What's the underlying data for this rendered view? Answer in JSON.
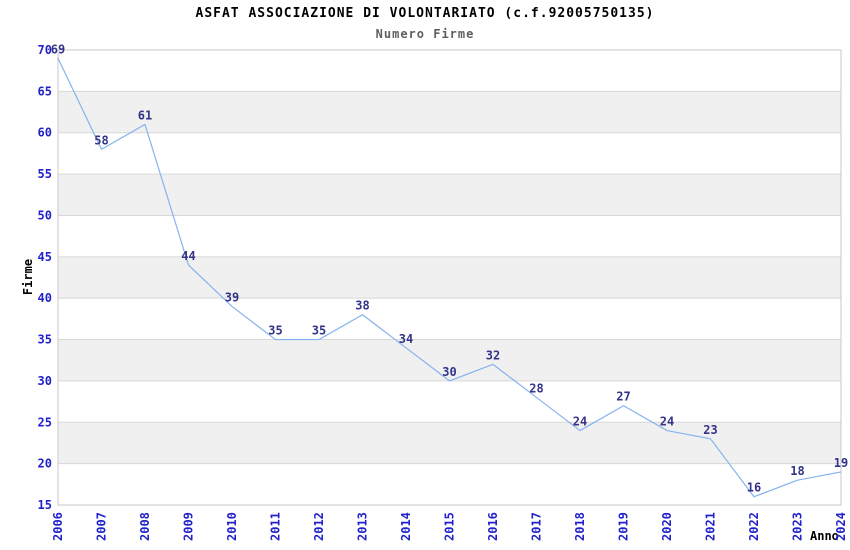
{
  "chart_data": {
    "type": "line",
    "title": "ASFAT ASSOCIAZIONE DI VOLONTARIATO (c.f.92005750135)",
    "subtitle": "Numero Firme",
    "xlabel": "Anno",
    "ylabel": "Firme",
    "categories": [
      "2006",
      "2007",
      "2008",
      "2009",
      "2010",
      "2011",
      "2012",
      "2013",
      "2014",
      "2015",
      "2016",
      "2017",
      "2018",
      "2019",
      "2020",
      "2021",
      "2022",
      "2023",
      "2024"
    ],
    "values": [
      69,
      58,
      61,
      44,
      39,
      35,
      35,
      38,
      34,
      30,
      32,
      28,
      24,
      27,
      24,
      23,
      16,
      18,
      19
    ],
    "ylim": [
      15,
      70
    ],
    "ytick_step": 5,
    "yticks": [
      15,
      20,
      25,
      30,
      35,
      40,
      45,
      50,
      55,
      60,
      65,
      70
    ],
    "grid": true,
    "legend": "none",
    "colors": {
      "line": "#85b3ee",
      "data_label": "#333388",
      "tick_label": "#2222cc",
      "band": "#f0f0f0",
      "gridline": "#d8d8d8",
      "plot_border": "#c8c8c8",
      "title": "#000000",
      "subtitle": "#5f5f5f",
      "background": "#ffffff"
    }
  }
}
